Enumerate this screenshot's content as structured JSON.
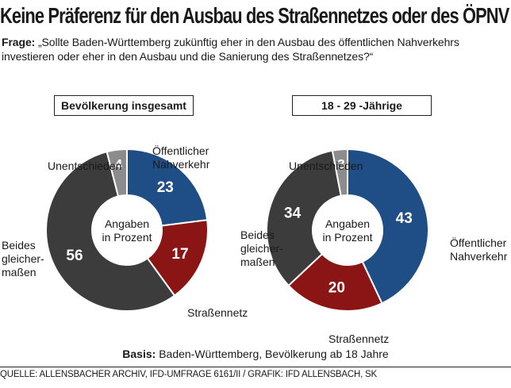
{
  "title": "Keine Präferenz für den Ausbau des Straßennetzes oder des ÖPNV",
  "question": {
    "label": "Frage:",
    "text": "„Sollte Baden-Württemberg zukünftig eher in den Ausbau des öffentlichen Nahverkehrs investieren oder eher in den Ausbau und die Sanierung des Straßennetzes?“"
  },
  "center_label": [
    "Angaben",
    "in Prozent"
  ],
  "chart_data": [
    {
      "type": "pie",
      "title": "Bevölkerung insgesamt",
      "slices": [
        {
          "label": "Öffentlicher Nahverkehr",
          "value": 23,
          "color": "#1f4e86"
        },
        {
          "label": "Straßennetz",
          "value": 17,
          "color": "#8b1414"
        },
        {
          "label": "Beides gleicher-maßen",
          "value": 56,
          "color": "#3c3c3c"
        },
        {
          "label": "Unentschieden",
          "value": 4,
          "color": "#8c8c8c"
        }
      ]
    },
    {
      "type": "pie",
      "title": "18 - 29 -Jährige",
      "slices": [
        {
          "label": "Öffentlicher Nahverkehr",
          "value": 43,
          "color": "#1f4e86"
        },
        {
          "label": "Straßennetz",
          "value": 20,
          "color": "#8b1414"
        },
        {
          "label": "Beides gleicher-maßen",
          "value": 34,
          "color": "#3c3c3c"
        },
        {
          "label": "Unentschieden",
          "value": 3,
          "color": "#8c8c8c"
        }
      ]
    }
  ],
  "basis": {
    "label": "Basis:",
    "text": "Baden-Württemberg, Bevölkerung ab 18 Jahre"
  },
  "source": "QUELLE: ALLENSBACHER ARCHIV, IFD-UMFRAGE 6161/II / GRAFIK: IFD ALLENSBACH, SK"
}
